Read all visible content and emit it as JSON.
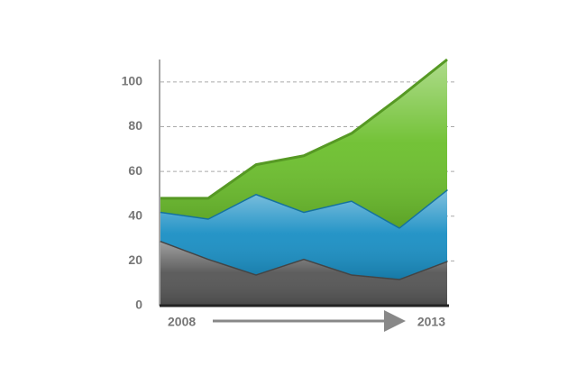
{
  "chart_data": {
    "type": "stacked_area",
    "categories": [
      "2008",
      null,
      null,
      null,
      null,
      null,
      "2013"
    ],
    "series": [
      {
        "color": "#555555",
        "values": [
          29,
          21,
          14,
          21,
          14,
          12,
          20
        ]
      },
      {
        "color": "#1a8fc4",
        "values": [
          13,
          18,
          36,
          21,
          33,
          23,
          32
        ]
      },
      {
        "color": "#6cbf2d",
        "values": [
          6,
          9,
          13,
          25,
          30,
          58,
          58
        ]
      }
    ],
    "ylim": [
      0,
      110
    ],
    "yticks": [
      0,
      20,
      40,
      60,
      80,
      100
    ],
    "grid": true
  }
}
